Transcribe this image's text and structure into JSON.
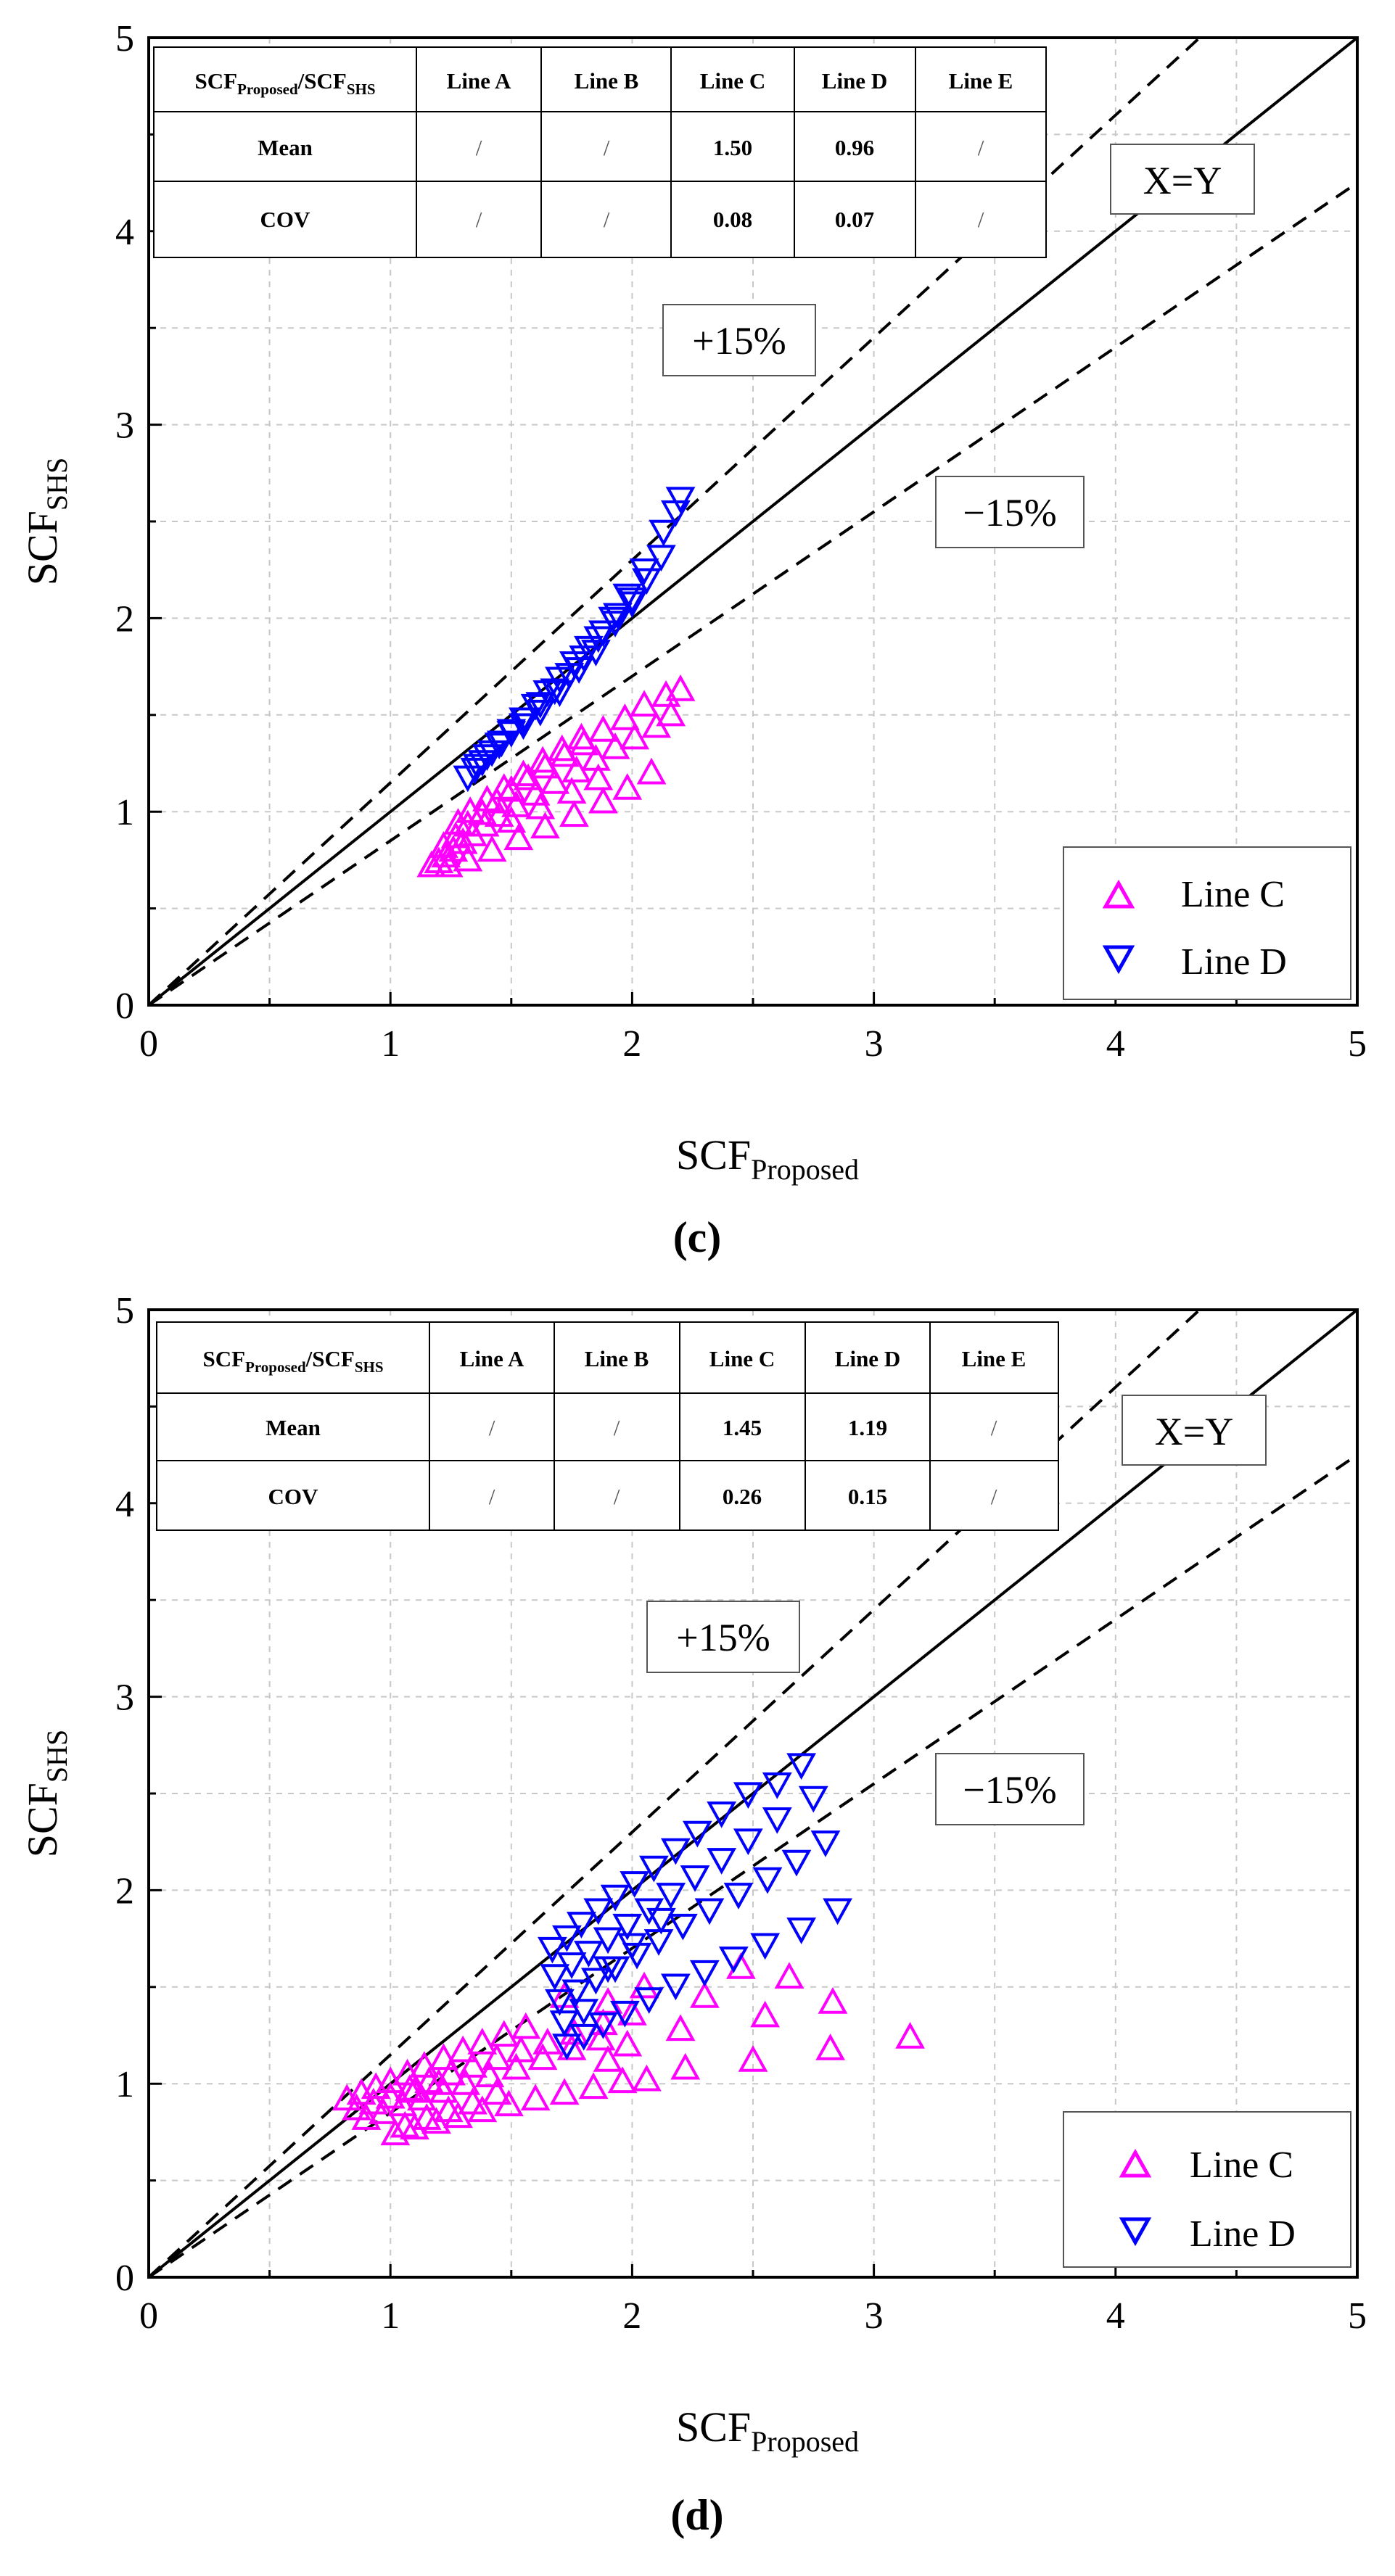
{
  "chart_data": [
    {
      "type": "scatter",
      "panel_label": "(c)",
      "xlabel": "SCF",
      "xlabel_sub": "Proposed",
      "ylabel": "SCF",
      "ylabel_sub": "SHS",
      "xlim": [
        0,
        5
      ],
      "ylim": [
        0,
        5
      ],
      "xticks": [
        "0",
        "1",
        "2",
        "3",
        "4",
        "5"
      ],
      "yticks": [
        "0",
        "1",
        "2",
        "3",
        "4",
        "5"
      ],
      "grid": true,
      "grid_style": "dashed",
      "legend_position": "bottom-right",
      "annotations": {
        "xy": "X=Y",
        "plus": "+15%",
        "minus": "−15%"
      },
      "reference_lines": [
        {
          "kind": "solid",
          "slope": 1.0
        },
        {
          "kind": "dashed",
          "slope": 1.15
        },
        {
          "kind": "dashed",
          "slope": 0.85
        }
      ],
      "table": {
        "header_main": "SCF",
        "header_sub1": "Proposed",
        "header_sep": "/SCF",
        "header_sub2": "SHS",
        "columns": [
          "Line A",
          "Line B",
          "Line C",
          "Line D",
          "Line E"
        ],
        "rows": [
          {
            "label": "Mean",
            "values": [
              "/",
              "/",
              "1.50",
              "0.96",
              "/"
            ]
          },
          {
            "label": "COV",
            "values": [
              "/",
              "/",
              "0.08",
              "0.07",
              "/"
            ]
          }
        ]
      },
      "series": [
        {
          "name": "Line C",
          "marker": "triangle-up",
          "color": "#ff00ff",
          "points": [
            [
              1.17,
              0.72
            ],
            [
              1.2,
              0.74
            ],
            [
              1.23,
              0.77
            ],
            [
              1.26,
              0.8
            ],
            [
              1.3,
              0.84
            ],
            [
              1.34,
              0.88
            ],
            [
              1.39,
              0.93
            ],
            [
              1.45,
              0.98
            ],
            [
              1.52,
              1.03
            ],
            [
              1.6,
              1.09
            ],
            [
              1.68,
              1.15
            ],
            [
              1.77,
              1.21
            ],
            [
              1.85,
              1.27
            ],
            [
              1.93,
              1.33
            ],
            [
              2.01,
              1.38
            ],
            [
              2.1,
              1.44
            ],
            [
              2.16,
              1.5
            ],
            [
              1.22,
              0.82
            ],
            [
              1.27,
              0.87
            ],
            [
              1.32,
              0.93
            ],
            [
              1.38,
              0.99
            ],
            [
              1.44,
              1.05
            ],
            [
              1.5,
              1.11
            ],
            [
              1.57,
              1.17
            ],
            [
              1.64,
              1.23
            ],
            [
              1.72,
              1.29
            ],
            [
              1.8,
              1.35
            ],
            [
              1.88,
              1.42
            ],
            [
              1.97,
              1.48
            ],
            [
              2.05,
              1.55
            ],
            [
              2.14,
              1.6
            ],
            [
              2.2,
              1.63
            ],
            [
              1.28,
              0.94
            ],
            [
              1.33,
              1.0
            ],
            [
              1.4,
              1.06
            ],
            [
              1.47,
              1.12
            ],
            [
              1.55,
              1.19
            ],
            [
              1.63,
              1.26
            ],
            [
              1.71,
              1.32
            ],
            [
              1.79,
              1.38
            ],
            [
              1.24,
              0.72
            ],
            [
              1.32,
              0.75
            ],
            [
              1.42,
              0.8
            ],
            [
              1.53,
              0.86
            ],
            [
              1.64,
              0.92
            ],
            [
              1.76,
              0.98
            ],
            [
              1.88,
              1.05
            ],
            [
              1.98,
              1.12
            ],
            [
              2.08,
              1.2
            ],
            [
              1.5,
              0.95
            ],
            [
              1.62,
              1.02
            ],
            [
              1.75,
              1.1
            ],
            [
              1.86,
              1.17
            ]
          ]
        },
        {
          "name": "Line D",
          "marker": "triangle-down",
          "color": "#0000ff",
          "points": [
            [
              1.32,
              1.18
            ],
            [
              1.35,
              1.22
            ],
            [
              1.38,
              1.26
            ],
            [
              1.42,
              1.31
            ],
            [
              1.46,
              1.36
            ],
            [
              1.5,
              1.42
            ],
            [
              1.55,
              1.48
            ],
            [
              1.6,
              1.55
            ],
            [
              1.65,
              1.62
            ],
            [
              1.7,
              1.69
            ],
            [
              1.76,
              1.77
            ],
            [
              1.82,
              1.85
            ],
            [
              1.88,
              1.93
            ],
            [
              1.94,
              2.02
            ],
            [
              2.0,
              2.1
            ],
            [
              2.06,
              2.2
            ],
            [
              2.12,
              2.32
            ],
            [
              2.2,
              2.62
            ],
            [
              1.36,
              1.24
            ],
            [
              1.4,
              1.29
            ],
            [
              1.45,
              1.35
            ],
            [
              1.5,
              1.41
            ],
            [
              1.56,
              1.48
            ],
            [
              1.62,
              1.56
            ],
            [
              1.68,
              1.63
            ],
            [
              1.74,
              1.71
            ],
            [
              1.8,
              1.8
            ],
            [
              1.86,
              1.9
            ],
            [
              1.92,
              2.0
            ],
            [
              1.98,
              2.12
            ],
            [
              2.05,
              2.25
            ],
            [
              2.13,
              2.45
            ],
            [
              2.18,
              2.55
            ],
            [
              1.55,
              1.45
            ],
            [
              1.62,
              1.52
            ],
            [
              1.7,
              1.62
            ],
            [
              1.78,
              1.74
            ],
            [
              1.85,
              1.83
            ],
            [
              1.93,
              1.98
            ],
            [
              2.0,
              2.08
            ]
          ]
        }
      ]
    },
    {
      "type": "scatter",
      "panel_label": "(d)",
      "xlabel": "SCF",
      "xlabel_sub": "Proposed",
      "ylabel": "SCF",
      "ylabel_sub": "SHS",
      "xlim": [
        0,
        5
      ],
      "ylim": [
        0,
        5
      ],
      "xticks": [
        "0",
        "1",
        "2",
        "3",
        "4",
        "5"
      ],
      "yticks": [
        "0",
        "1",
        "2",
        "3",
        "4",
        "5"
      ],
      "grid": true,
      "grid_style": "dashed",
      "legend_position": "bottom-right",
      "annotations": {
        "xy": "X=Y",
        "plus": "+15%",
        "minus": "−15%"
      },
      "reference_lines": [
        {
          "kind": "solid",
          "slope": 1.0
        },
        {
          "kind": "dashed",
          "slope": 1.15
        },
        {
          "kind": "dashed",
          "slope": 0.85
        }
      ],
      "table": {
        "header_main": "SCF",
        "header_sub1": "Proposed",
        "header_sep": "/SCF",
        "header_sub2": "SHS",
        "columns": [
          "Line A",
          "Line B",
          "Line C",
          "Line D",
          "Line E"
        ],
        "rows": [
          {
            "label": "Mean",
            "values": [
              "/",
              "/",
              "1.45",
              "1.19",
              "/"
            ]
          },
          {
            "label": "COV",
            "values": [
              "/",
              "/",
              "0.26",
              "0.15",
              "/"
            ]
          }
        ]
      },
      "series": [
        {
          "name": "Line C",
          "marker": "triangle-up",
          "color": "#ff00ff",
          "points": [
            [
              0.82,
              0.92
            ],
            [
              0.88,
              0.95
            ],
            [
              0.94,
              0.98
            ],
            [
              1.0,
              1.01
            ],
            [
              1.07,
              1.05
            ],
            [
              1.14,
              1.09
            ],
            [
              1.22,
              1.13
            ],
            [
              1.3,
              1.17
            ],
            [
              1.38,
              1.21
            ],
            [
              1.47,
              1.25
            ],
            [
              1.56,
              1.29
            ],
            [
              0.86,
              0.87
            ],
            [
              0.93,
              0.9
            ],
            [
              1.0,
              0.93
            ],
            [
              1.08,
              0.97
            ],
            [
              1.16,
              1.01
            ],
            [
              1.25,
              1.05
            ],
            [
              1.34,
              1.09
            ],
            [
              1.44,
              1.13
            ],
            [
              1.54,
              1.17
            ],
            [
              1.65,
              1.21
            ],
            [
              1.76,
              1.26
            ],
            [
              1.88,
              1.31
            ],
            [
              2.0,
              1.36
            ],
            [
              0.9,
              0.82
            ],
            [
              0.97,
              0.85
            ],
            [
              1.05,
              0.89
            ],
            [
              1.13,
              0.92
            ],
            [
              1.22,
              0.96
            ],
            [
              1.31,
              1.0
            ],
            [
              1.41,
              1.04
            ],
            [
              1.52,
              1.08
            ],
            [
              1.63,
              1.13
            ],
            [
              1.75,
              1.18
            ],
            [
              1.87,
              1.23
            ],
            [
              1.98,
              1.2
            ],
            [
              2.2,
              1.28
            ],
            [
              1.02,
              0.74
            ],
            [
              1.1,
              0.77
            ],
            [
              1.19,
              0.8
            ],
            [
              1.28,
              0.83
            ],
            [
              1.38,
              0.86
            ],
            [
              1.49,
              0.89
            ],
            [
              1.6,
              0.92
            ],
            [
              1.72,
              0.95
            ],
            [
              1.84,
              0.98
            ],
            [
              1.96,
              1.01
            ],
            [
              2.06,
              1.02
            ],
            [
              2.22,
              1.08
            ],
            [
              2.5,
              1.12
            ],
            [
              2.82,
              1.18
            ],
            [
              1.06,
              0.78
            ],
            [
              1.15,
              0.82
            ],
            [
              1.24,
              0.86
            ],
            [
              1.34,
              0.9
            ],
            [
              1.44,
              0.95
            ],
            [
              1.9,
              1.12
            ],
            [
              2.3,
              1.45
            ],
            [
              2.45,
              1.6
            ],
            [
              2.65,
              1.55
            ],
            [
              2.55,
              1.35
            ],
            [
              2.83,
              1.42
            ],
            [
              3.15,
              1.24
            ],
            [
              1.72,
              1.45
            ],
            [
              1.9,
              1.42
            ],
            [
              2.05,
              1.5
            ],
            [
              1.1,
              0.96
            ],
            [
              1.2,
              1.0
            ]
          ]
        },
        {
          "name": "Line D",
          "marker": "triangle-down",
          "color": "#0000ff",
          "points": [
            [
              1.67,
              1.7
            ],
            [
              1.73,
              1.76
            ],
            [
              1.79,
              1.83
            ],
            [
              1.86,
              1.9
            ],
            [
              1.93,
              1.97
            ],
            [
              2.01,
              2.04
            ],
            [
              2.09,
              2.12
            ],
            [
              2.18,
              2.21
            ],
            [
              2.27,
              2.3
            ],
            [
              2.37,
              2.4
            ],
            [
              2.48,
              2.5
            ],
            [
              2.6,
              2.55
            ],
            [
              2.7,
              2.65
            ],
            [
              1.68,
              1.56
            ],
            [
              1.75,
              1.62
            ],
            [
              1.82,
              1.68
            ],
            [
              1.9,
              1.75
            ],
            [
              1.98,
              1.82
            ],
            [
              2.07,
              1.9
            ],
            [
              2.16,
              1.98
            ],
            [
              2.26,
              2.07
            ],
            [
              2.37,
              2.16
            ],
            [
              2.48,
              2.26
            ],
            [
              2.6,
              2.37
            ],
            [
              2.75,
              2.48
            ],
            [
              1.7,
              1.43
            ],
            [
              1.77,
              1.48
            ],
            [
              1.85,
              1.54
            ],
            [
              1.93,
              1.6
            ],
            [
              2.02,
              1.67
            ],
            [
              2.11,
              1.74
            ],
            [
              2.21,
              1.82
            ],
            [
              2.32,
              1.9
            ],
            [
              2.44,
              1.98
            ],
            [
              2.56,
              2.06
            ],
            [
              2.68,
              2.15
            ],
            [
              2.8,
              2.25
            ],
            [
              1.73,
              1.2
            ],
            [
              1.8,
              1.25
            ],
            [
              1.88,
              1.31
            ],
            [
              1.97,
              1.37
            ],
            [
              2.07,
              1.44
            ],
            [
              2.18,
              1.51
            ],
            [
              2.3,
              1.58
            ],
            [
              2.42,
              1.65
            ],
            [
              2.55,
              1.72
            ],
            [
              2.7,
              1.8
            ],
            [
              2.85,
              1.9
            ],
            [
              1.72,
              1.32
            ],
            [
              1.8,
              1.38
            ],
            [
              1.9,
              1.6
            ],
            [
              2.0,
              1.72
            ],
            [
              2.12,
              1.85
            ]
          ]
        }
      ]
    }
  ]
}
